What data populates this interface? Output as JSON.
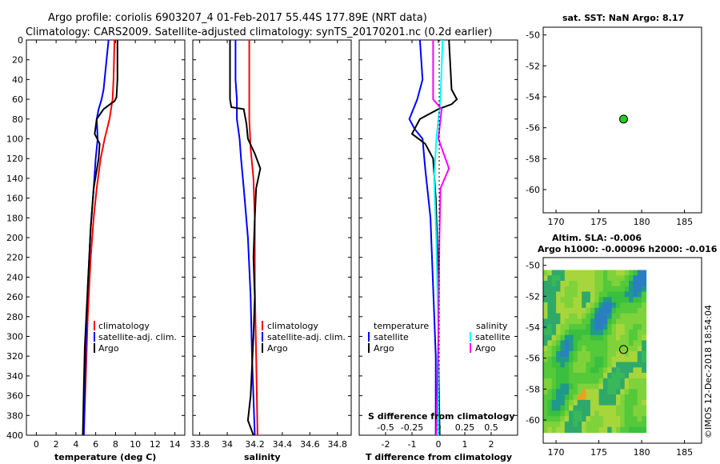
{
  "header": {
    "line1": "Argo profile: coriolis 6903207_4 01-Feb-2017 55.44S 177.89E (NRT data)",
    "line2": "Climatology: CARS2009. Satellite-adjusted climatology: synTS_20170201.nc (0.2d earlier)"
  },
  "watermark": "©IMOS 12-Dec-2018 18:54:04",
  "colors": {
    "climatology": "#ff0000",
    "satellite": "#0000ff",
    "argo": "#000000",
    "sat_diff_salinity": "#00ffff",
    "clim_diff_salinity": "#ff00ff",
    "station": "#22cc22"
  },
  "chart_data": [
    {
      "id": "temperature",
      "type": "line",
      "xlabel": "temperature (deg C)",
      "ylabel": "",
      "xlim": [
        -1,
        15
      ],
      "ylim": [
        400,
        0
      ],
      "xticks": [
        "0",
        "2",
        "4",
        "6",
        "8",
        "10",
        "12",
        "14"
      ],
      "xtick_values": [
        0,
        2,
        4,
        6,
        8,
        10,
        12,
        14
      ],
      "yticks": [
        "0",
        "20",
        "40",
        "60",
        "80",
        "100",
        "120",
        "140",
        "160",
        "180",
        "200",
        "220",
        "240",
        "260",
        "280",
        "300",
        "320",
        "340",
        "360",
        "380",
        "400"
      ],
      "ytick_values": [
        0,
        20,
        40,
        60,
        80,
        100,
        120,
        140,
        160,
        180,
        200,
        220,
        240,
        260,
        280,
        300,
        320,
        340,
        360,
        380,
        400
      ],
      "legend": [
        "climatology",
        "satellite-adj. clim.",
        "Argo"
      ],
      "series": [
        {
          "name": "climatology",
          "color": "#ff0000",
          "points": [
            [
              7.9,
              0
            ],
            [
              7.8,
              40
            ],
            [
              7.7,
              60
            ],
            [
              7.4,
              80
            ],
            [
              6.9,
              100
            ],
            [
              6.5,
              120
            ],
            [
              6.1,
              150
            ],
            [
              5.8,
              180
            ],
            [
              5.5,
              220
            ],
            [
              5.2,
              280
            ],
            [
              5.0,
              340
            ],
            [
              4.8,
              400
            ]
          ]
        },
        {
          "name": "satellite-adj. clim.",
          "color": "#0000ff",
          "points": [
            [
              7.3,
              0
            ],
            [
              7.1,
              20
            ],
            [
              6.8,
              50
            ],
            [
              6.6,
              60
            ],
            [
              6.3,
              70
            ],
            [
              6.1,
              80
            ],
            [
              6.2,
              100
            ],
            [
              6.0,
              120
            ],
            [
              5.8,
              150
            ],
            [
              5.5,
              190
            ],
            [
              5.2,
              250
            ],
            [
              5.0,
              310
            ],
            [
              4.8,
              400
            ]
          ]
        },
        {
          "name": "Argo",
          "color": "#000000",
          "points": [
            [
              8.2,
              0
            ],
            [
              8.2,
              40
            ],
            [
              8.1,
              58
            ],
            [
              7.9,
              62
            ],
            [
              7.6,
              64
            ],
            [
              6.8,
              70
            ],
            [
              6.1,
              80
            ],
            [
              5.9,
              95
            ],
            [
              6.4,
              105
            ],
            [
              6.3,
              120
            ],
            [
              5.8,
              150
            ],
            [
              5.5,
              190
            ],
            [
              5.2,
              250
            ],
            [
              4.9,
              310
            ],
            [
              4.8,
              350
            ],
            [
              4.7,
              400
            ]
          ]
        }
      ]
    },
    {
      "id": "salinity",
      "type": "line",
      "xlabel": "salinity",
      "ylabel": "",
      "xlim": [
        33.75,
        34.9
      ],
      "ylim": [
        400,
        0
      ],
      "xticks": [
        "33.8",
        "34",
        "34.2",
        "34.4",
        "34.6",
        "34.8"
      ],
      "xtick_values": [
        33.8,
        34.0,
        34.2,
        34.4,
        34.6,
        34.8
      ],
      "legend": [
        "climatology",
        "satellite-adj. clim.",
        "Argo"
      ],
      "series": [
        {
          "name": "climatology",
          "color": "#ff0000",
          "points": [
            [
              34.16,
              0
            ],
            [
              34.16,
              40
            ],
            [
              34.16,
              80
            ],
            [
              34.17,
              110
            ],
            [
              34.19,
              140
            ],
            [
              34.2,
              180
            ],
            [
              34.2,
              250
            ],
            [
              34.21,
              320
            ],
            [
              34.22,
              400
            ]
          ]
        },
        {
          "name": "satellite-adj. clim.",
          "color": "#0000ff",
          "points": [
            [
              34.06,
              0
            ],
            [
              34.06,
              40
            ],
            [
              34.07,
              60
            ],
            [
              34.07,
              80
            ],
            [
              34.09,
              100
            ],
            [
              34.1,
              120
            ],
            [
              34.12,
              150
            ],
            [
              34.15,
              200
            ],
            [
              34.17,
              260
            ],
            [
              34.18,
              320
            ],
            [
              34.2,
              400
            ]
          ]
        },
        {
          "name": "Argo",
          "color": "#000000",
          "points": [
            [
              34.02,
              0
            ],
            [
              34.02,
              60
            ],
            [
              34.03,
              68
            ],
            [
              34.12,
              70
            ],
            [
              34.14,
              85
            ],
            [
              34.15,
              100
            ],
            [
              34.2,
              115
            ],
            [
              34.24,
              130
            ],
            [
              34.21,
              150
            ],
            [
              34.2,
              180
            ],
            [
              34.19,
              220
            ],
            [
              34.2,
              260
            ],
            [
              34.19,
              300
            ],
            [
              34.17,
              360
            ],
            [
              34.15,
              385
            ],
            [
              34.19,
              400
            ]
          ]
        }
      ]
    },
    {
      "id": "difference",
      "type": "line",
      "xlabel": "T difference from climatology",
      "xlabel2": "S difference from climatology",
      "xlim": [
        -3,
        3
      ],
      "xlim_salinity": [
        -0.75,
        0.75
      ],
      "ylim": [
        400,
        0
      ],
      "xticks": [
        "-2",
        "-1",
        "0",
        "1",
        "2"
      ],
      "xtick_values": [
        -2,
        -1,
        0,
        1,
        2
      ],
      "xticks_salinity": [
        "-0.5",
        "-0.25",
        "0",
        "0.25",
        "0.5"
      ],
      "xtick_values_salinity": [
        -0.5,
        -0.25,
        0,
        0.25,
        0.5
      ],
      "legend_temperature": {
        "title": "temperature",
        "items": [
          "satellite",
          "Argo"
        ]
      },
      "legend_salinity": {
        "title": "salinity",
        "items": [
          "satellite",
          "Argo"
        ]
      },
      "series": [
        {
          "name": "T satellite",
          "color": "#0000ff",
          "points": [
            [
              -0.7,
              0
            ],
            [
              -0.6,
              40
            ],
            [
              -0.8,
              60
            ],
            [
              -1.1,
              80
            ],
            [
              -0.9,
              90
            ],
            [
              -0.6,
              100
            ],
            [
              -0.5,
              130
            ],
            [
              -0.3,
              180
            ],
            [
              -0.2,
              250
            ],
            [
              -0.1,
              320
            ],
            [
              -0.1,
              400
            ]
          ]
        },
        {
          "name": "T Argo",
          "color": "#000000",
          "points": [
            [
              0.4,
              0
            ],
            [
              0.5,
              50
            ],
            [
              0.7,
              60
            ],
            [
              0.5,
              65
            ],
            [
              0.0,
              70
            ],
            [
              -0.7,
              80
            ],
            [
              -1.0,
              95
            ],
            [
              -0.5,
              105
            ],
            [
              -0.2,
              120
            ],
            [
              -0.1,
              160
            ],
            [
              0.0,
              240
            ],
            [
              0.0,
              320
            ],
            [
              0.05,
              400
            ]
          ]
        },
        {
          "name": "S satellite",
          "color": "#00ffff",
          "points": [
            [
              0.04,
              0
            ],
            [
              0.02,
              60
            ],
            [
              -0.02,
              100
            ],
            [
              -0.04,
              140
            ],
            [
              -0.02,
              200
            ],
            [
              0.0,
              300
            ],
            [
              0.0,
              400
            ]
          ]
        },
        {
          "name": "S Argo",
          "color": "#ff00ff",
          "points": [
            [
              -0.05,
              0
            ],
            [
              -0.05,
              60
            ],
            [
              0.03,
              70
            ],
            [
              0.0,
              100
            ],
            [
              0.1,
              130
            ],
            [
              0.02,
              150
            ],
            [
              0.01,
              200
            ],
            [
              0.0,
              300
            ],
            [
              -0.02,
              400
            ]
          ]
        }
      ]
    },
    {
      "id": "sst_map",
      "type": "scatter",
      "title": "sat. SST: NaN Argo: 8.17",
      "xlim": [
        168.5,
        187
      ],
      "ylim": [
        -61.5,
        -49.5
      ],
      "xticks": [
        "170",
        "175",
        "180",
        "185"
      ],
      "xtick_values": [
        170,
        175,
        180,
        185
      ],
      "yticks": [
        "-50",
        "-52",
        "-54",
        "-56",
        "-58",
        "-60"
      ],
      "ytick_values": [
        -50,
        -52,
        -54,
        -56,
        -58,
        -60
      ],
      "points": [
        [
          177.89,
          -55.44
        ]
      ]
    },
    {
      "id": "sla_map",
      "type": "heatmap",
      "title": "Altim. SLA: -0.006",
      "subtitle": "Argo h1000: -0.00096 h2000: -0.016",
      "xlim": [
        168.5,
        187
      ],
      "ylim": [
        -61.5,
        -49.5
      ],
      "xticks": [
        "170",
        "175",
        "180",
        "185"
      ],
      "xtick_values": [
        170,
        175,
        180,
        185
      ],
      "yticks": [
        "-50",
        "-52",
        "-54",
        "-56",
        "-58",
        "-60"
      ],
      "ytick_values": [
        -50,
        -52,
        -54,
        -56,
        -58,
        -60
      ],
      "points": [
        [
          177.89,
          -55.44
        ]
      ]
    }
  ]
}
